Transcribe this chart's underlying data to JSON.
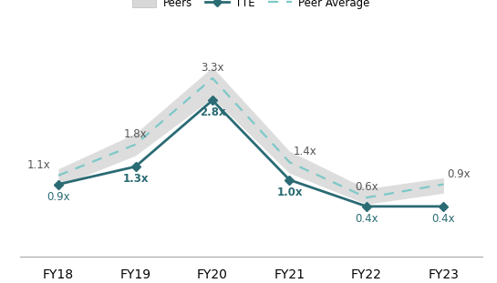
{
  "categories": [
    "FY18",
    "FY19",
    "FY20",
    "FY21",
    "FY22",
    "FY23"
  ],
  "tte_values": [
    0.9,
    1.3,
    2.8,
    1.0,
    0.4,
    0.4
  ],
  "peer_avg_values": [
    1.1,
    1.8,
    3.3,
    1.4,
    0.6,
    0.9
  ],
  "peers_upper": [
    1.25,
    2.05,
    3.55,
    1.65,
    0.8,
    1.05
  ],
  "peers_lower": [
    0.85,
    1.55,
    2.85,
    1.15,
    0.45,
    0.7
  ],
  "tte_color": "#2a6b74",
  "peer_avg_color": "#7ec8c8",
  "peers_band_color": "#d8d8d8",
  "tte_labels": [
    "0.9x",
    "1.3x",
    "2.8x",
    "1.0x",
    "0.4x",
    "0.4x"
  ],
  "tte_label_bold": [
    false,
    true,
    true,
    true,
    false,
    false
  ],
  "peer_avg_labels": [
    "1.1x",
    "1.8x",
    "3.3x",
    "1.4x",
    "0.6x",
    "0.9x"
  ],
  "legend_peers": "Peers",
  "legend_tte": "TTE",
  "legend_peer_avg": "Peer Average",
  "background_color": "#ffffff",
  "figsize": [
    5.45,
    3.11
  ],
  "dpi": 100
}
